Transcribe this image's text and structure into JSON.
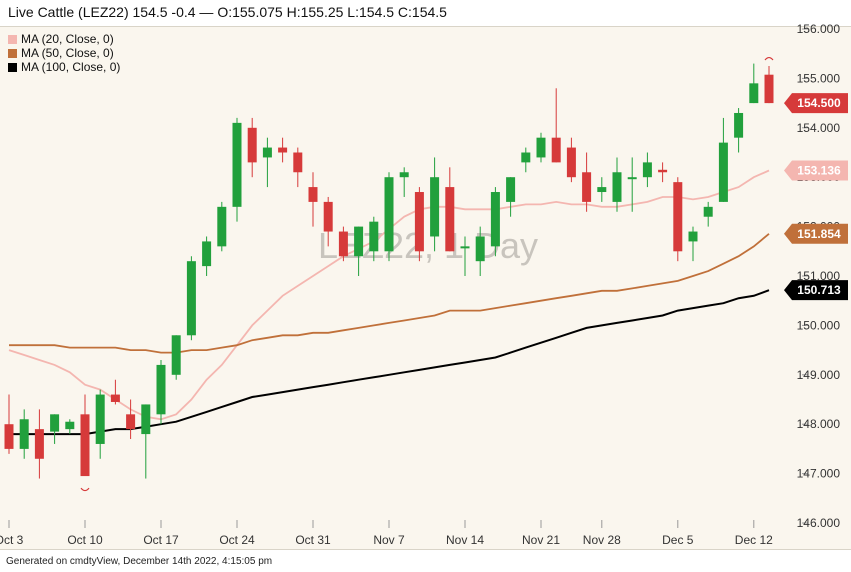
{
  "header": {
    "title": "Live Cattle (LEZ22) 154.5 -0.4 — O:155.075 H:155.25 L:154.5 C:154.5"
  },
  "footer": {
    "text": "Generated on cmdtyView, December 14th 2022, 4:15:05 pm"
  },
  "legend": {
    "items": [
      {
        "label": "MA (20, Close, 0)",
        "color": "#f4b6b0"
      },
      {
        "label": "MA (50, Close, 0)",
        "color": "#c0703a"
      },
      {
        "label": "MA (100, Close, 0)",
        "color": "#000000"
      }
    ]
  },
  "watermark": "LEZ22, 1 Day",
  "colors": {
    "up": "#21a03c",
    "down": "#d63a3a",
    "background": "#faf6ee"
  },
  "chart_data": {
    "type": "candlestick",
    "ylim": [
      146.0,
      156.0
    ],
    "y_ticks": [
      "146.000",
      "147.000",
      "148.000",
      "149.000",
      "150.000",
      "151.000",
      "152.000",
      "153.000",
      "154.000",
      "155.000",
      "156.000"
    ],
    "x_tick_labels": [
      "Oct 3",
      "Oct 10",
      "Oct 17",
      "Oct 24",
      "Oct 31",
      "Nov 7",
      "Nov 14",
      "Nov 21",
      "Nov 28",
      "Dec 5",
      "Dec 12"
    ],
    "x_tick_index": [
      0,
      5,
      10,
      15,
      20,
      25,
      30,
      35,
      39,
      44,
      49
    ],
    "candles": [
      {
        "o": 148.0,
        "h": 148.6,
        "l": 147.4,
        "c": 147.5
      },
      {
        "o": 147.5,
        "h": 148.3,
        "l": 147.3,
        "c": 148.1
      },
      {
        "o": 147.9,
        "h": 148.3,
        "l": 146.9,
        "c": 147.3
      },
      {
        "o": 147.85,
        "h": 148.2,
        "l": 147.6,
        "c": 148.2
      },
      {
        "o": 147.9,
        "h": 148.1,
        "l": 147.8,
        "c": 148.05
      },
      {
        "o": 148.2,
        "h": 148.6,
        "l": 147.0,
        "c": 146.95
      },
      {
        "o": 147.6,
        "h": 148.7,
        "l": 147.3,
        "c": 148.6
      },
      {
        "o": 148.6,
        "h": 148.9,
        "l": 148.4,
        "c": 148.45
      },
      {
        "o": 148.2,
        "h": 148.5,
        "l": 147.7,
        "c": 147.9
      },
      {
        "o": 147.8,
        "h": 148.4,
        "l": 146.9,
        "c": 148.4
      },
      {
        "o": 148.2,
        "h": 149.3,
        "l": 148.0,
        "c": 149.2
      },
      {
        "o": 149.0,
        "h": 149.8,
        "l": 148.9,
        "c": 149.8
      },
      {
        "o": 149.8,
        "h": 151.4,
        "l": 149.7,
        "c": 151.3
      },
      {
        "o": 151.2,
        "h": 151.8,
        "l": 151.0,
        "c": 151.7
      },
      {
        "o": 151.6,
        "h": 152.5,
        "l": 151.5,
        "c": 152.4
      },
      {
        "o": 152.4,
        "h": 154.2,
        "l": 152.1,
        "c": 154.1
      },
      {
        "o": 154.0,
        "h": 154.2,
        "l": 153.0,
        "c": 153.3
      },
      {
        "o": 153.4,
        "h": 153.8,
        "l": 152.8,
        "c": 153.6
      },
      {
        "o": 153.6,
        "h": 153.8,
        "l": 153.3,
        "c": 153.5
      },
      {
        "o": 153.5,
        "h": 153.6,
        "l": 152.8,
        "c": 153.1
      },
      {
        "o": 152.8,
        "h": 153.1,
        "l": 152.0,
        "c": 152.5
      },
      {
        "o": 152.5,
        "h": 152.6,
        "l": 151.6,
        "c": 151.9
      },
      {
        "o": 151.9,
        "h": 152.0,
        "l": 151.3,
        "c": 151.4
      },
      {
        "o": 151.4,
        "h": 152.0,
        "l": 151.0,
        "c": 152.0
      },
      {
        "o": 151.5,
        "h": 152.2,
        "l": 151.3,
        "c": 152.1
      },
      {
        "o": 151.5,
        "h": 153.1,
        "l": 151.3,
        "c": 153.0
      },
      {
        "o": 153.0,
        "h": 153.2,
        "l": 152.6,
        "c": 153.1
      },
      {
        "o": 152.7,
        "h": 152.8,
        "l": 151.3,
        "c": 151.5
      },
      {
        "o": 151.8,
        "h": 153.4,
        "l": 151.5,
        "c": 153.0
      },
      {
        "o": 152.8,
        "h": 153.2,
        "l": 151.5,
        "c": 151.5
      },
      {
        "o": 151.6,
        "h": 151.8,
        "l": 151.0,
        "c": 151.6
      },
      {
        "o": 151.3,
        "h": 152.0,
        "l": 151.0,
        "c": 151.8
      },
      {
        "o": 151.6,
        "h": 152.8,
        "l": 151.4,
        "c": 152.7
      },
      {
        "o": 152.5,
        "h": 153.0,
        "l": 152.2,
        "c": 153.0
      },
      {
        "o": 153.3,
        "h": 153.6,
        "l": 153.1,
        "c": 153.5
      },
      {
        "o": 153.4,
        "h": 153.9,
        "l": 153.3,
        "c": 153.8
      },
      {
        "o": 153.8,
        "h": 154.8,
        "l": 153.3,
        "c": 153.3
      },
      {
        "o": 153.6,
        "h": 153.8,
        "l": 152.9,
        "c": 153.0
      },
      {
        "o": 153.1,
        "h": 153.5,
        "l": 152.3,
        "c": 152.5
      },
      {
        "o": 152.7,
        "h": 153.0,
        "l": 152.5,
        "c": 152.8
      },
      {
        "o": 152.5,
        "h": 153.4,
        "l": 152.3,
        "c": 153.1
      },
      {
        "o": 153.0,
        "h": 153.4,
        "l": 152.3,
        "c": 153.0
      },
      {
        "o": 153.0,
        "h": 153.5,
        "l": 152.8,
        "c": 153.3
      },
      {
        "o": 153.15,
        "h": 153.3,
        "l": 152.9,
        "c": 153.1
      },
      {
        "o": 152.9,
        "h": 153.0,
        "l": 151.3,
        "c": 151.5
      },
      {
        "o": 151.7,
        "h": 152.0,
        "l": 151.3,
        "c": 151.9
      },
      {
        "o": 152.2,
        "h": 152.5,
        "l": 152.0,
        "c": 152.4
      },
      {
        "o": 152.5,
        "h": 154.2,
        "l": 152.5,
        "c": 153.7
      },
      {
        "o": 153.8,
        "h": 154.4,
        "l": 153.5,
        "c": 154.3
      },
      {
        "o": 154.5,
        "h": 155.3,
        "l": 154.5,
        "c": 154.9
      },
      {
        "o": 155.075,
        "h": 155.25,
        "l": 154.5,
        "c": 154.5
      }
    ],
    "series": [
      {
        "name": "MA (20, Close, 0)",
        "last_value": "153.136",
        "values": [
          149.5,
          149.4,
          149.3,
          149.2,
          149.05,
          148.8,
          148.7,
          148.5,
          148.3,
          148.15,
          148.1,
          148.2,
          148.5,
          148.9,
          149.2,
          149.6,
          150.0,
          150.3,
          150.6,
          150.8,
          151.0,
          151.2,
          151.4,
          151.55,
          151.7,
          151.95,
          152.2,
          152.35,
          152.4,
          152.4,
          152.35,
          152.35,
          152.35,
          152.4,
          152.45,
          152.45,
          152.5,
          152.45,
          152.45,
          152.4,
          152.4,
          152.45,
          152.5,
          152.6,
          152.6,
          152.55,
          152.6,
          152.7,
          152.8,
          153.0,
          153.136
        ]
      },
      {
        "name": "MA (50, Close, 0)",
        "last_value": "151.854",
        "values": [
          149.6,
          149.6,
          149.6,
          149.6,
          149.55,
          149.55,
          149.55,
          149.55,
          149.5,
          149.5,
          149.45,
          149.45,
          149.5,
          149.5,
          149.55,
          149.6,
          149.7,
          149.75,
          149.8,
          149.8,
          149.85,
          149.85,
          149.9,
          149.95,
          150.0,
          150.05,
          150.1,
          150.15,
          150.2,
          150.3,
          150.3,
          150.3,
          150.35,
          150.4,
          150.45,
          150.5,
          150.55,
          150.6,
          150.65,
          150.7,
          150.7,
          150.75,
          150.8,
          150.85,
          150.9,
          151.0,
          151.1,
          151.25,
          151.4,
          151.6,
          151.854
        ]
      },
      {
        "name": "MA (100, Close, 0)",
        "last_value": "150.713",
        "values": [
          147.8,
          147.8,
          147.8,
          147.8,
          147.8,
          147.8,
          147.85,
          147.9,
          147.9,
          147.95,
          148.0,
          148.05,
          148.15,
          148.25,
          148.35,
          148.45,
          148.55,
          148.6,
          148.65,
          148.7,
          148.75,
          148.8,
          148.85,
          148.9,
          148.95,
          149.0,
          149.05,
          149.1,
          149.15,
          149.2,
          149.25,
          149.3,
          149.35,
          149.45,
          149.55,
          149.65,
          149.75,
          149.85,
          149.95,
          150.0,
          150.05,
          150.1,
          150.15,
          150.2,
          150.3,
          150.35,
          150.4,
          150.45,
          150.55,
          150.6,
          150.713
        ]
      }
    ],
    "price_badges": [
      {
        "value": "154.500",
        "price": 154.5,
        "bg": "#d63a3a",
        "fg": "#ffffff"
      },
      {
        "value": "153.136",
        "price": 153.136,
        "bg": "#f4b6b0",
        "fg": "#ffffff"
      },
      {
        "value": "151.854",
        "price": 151.854,
        "bg": "#c0703a",
        "fg": "#ffffff"
      },
      {
        "value": "150.713",
        "price": 150.713,
        "bg": "#000000",
        "fg": "#ffffff"
      }
    ],
    "grid": false
  }
}
